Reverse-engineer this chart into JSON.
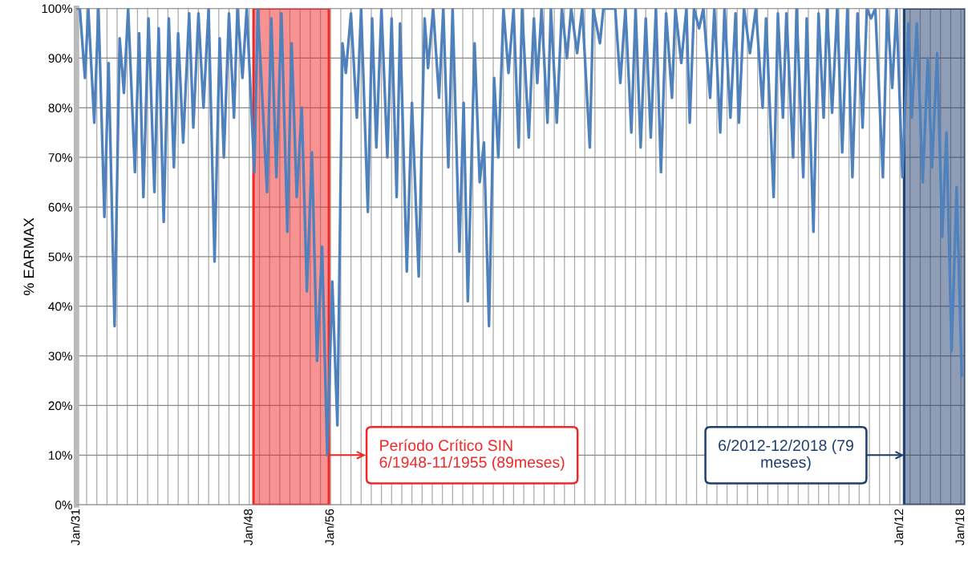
{
  "chart_data": {
    "type": "line",
    "ylabel": "% EARMAX",
    "x": [
      "1931-01",
      "1931-05",
      "1931-11",
      "1932-03",
      "1932-10",
      "1933-03",
      "1933-10",
      "1934-03",
      "1934-10",
      "1935-04",
      "1935-09",
      "1936-02",
      "1936-10",
      "1937-03",
      "1937-08",
      "1938-02",
      "1938-09",
      "1939-02",
      "1939-08",
      "1940-02",
      "1940-08",
      "1941-01",
      "1941-07",
      "1942-02",
      "1942-07",
      "1943-01",
      "1943-07",
      "1944-01",
      "1944-08",
      "1945-02",
      "1945-07",
      "1946-01",
      "1946-07",
      "1946-11",
      "1947-05",
      "1947-10",
      "1948-07",
      "1948-11",
      "1949-10",
      "1950-03",
      "1950-09",
      "1951-03",
      "1951-10",
      "1952-03",
      "1952-09",
      "1953-03",
      "1953-09",
      "1954-03",
      "1954-09",
      "1955-03",
      "1955-09",
      "1956-03",
      "1956-09",
      "1957-03",
      "1957-07",
      "1958-01",
      "1958-08",
      "1959-01",
      "1959-09",
      "1960-02",
      "1960-07",
      "1961-01",
      "1961-08",
      "1962-01",
      "1962-07",
      "1962-11",
      "1963-07",
      "1964-01",
      "1964-09",
      "1965-04",
      "1965-08",
      "1966-02",
      "1966-09",
      "1967-02",
      "1967-08",
      "1968-01",
      "1968-09",
      "1969-02",
      "1969-07",
      "1970-03",
      "1970-09",
      "1971-02",
      "1971-08",
      "1972-02",
      "1972-07",
      "1973-01",
      "1973-07",
      "1974-01",
      "1974-07",
      "1974-11",
      "1975-07",
      "1976-01",
      "1976-05",
      "1976-10",
      "1977-05",
      "1977-09",
      "1978-04",
      "1978-10",
      "1979-04",
      "1979-09",
      "1980-04",
      "1980-10",
      "1981-07",
      "1981-11",
      "1982-07",
      "1982-11",
      "1984-01",
      "1984-07",
      "1985-01",
      "1985-08",
      "1986-01",
      "1986-07",
      "1987-01",
      "1987-07",
      "1988-01",
      "1988-07",
      "1989-01",
      "1989-08",
      "1989-12",
      "1990-07",
      "1991-01",
      "1991-05",
      "1991-10",
      "1992-04",
      "1992-09",
      "1993-05",
      "1993-10",
      "1994-05",
      "1994-10",
      "1995-05",
      "1995-11",
      "1996-03",
      "1996-09",
      "1997-04",
      "1997-11",
      "1998-07",
      "1998-11",
      "1999-08",
      "2000-01",
      "2000-07",
      "2000-11",
      "2001-07",
      "2001-11",
      "2002-07",
      "2002-11",
      "2003-07",
      "2004-01",
      "2004-07",
      "2004-11",
      "2005-05",
      "2005-11",
      "2006-05",
      "2006-11",
      "2007-05",
      "2007-11",
      "2008-05",
      "2008-10",
      "2009-03",
      "2009-08",
      "2010-05",
      "2010-10",
      "2011-04",
      "2011-09",
      "2012-04",
      "2012-11",
      "2013-03",
      "2013-09",
      "2014-04",
      "2014-10",
      "2015-03",
      "2015-09",
      "2016-03",
      "2016-08",
      "2017-02",
      "2017-08",
      "2018-02"
    ],
    "series": [
      {
        "color": "#4f81bd",
        "values": [
          100,
          100,
          86,
          100,
          77,
          100,
          58,
          89,
          36,
          94,
          83,
          100,
          67,
          95,
          62,
          98,
          63,
          96,
          57,
          98,
          68,
          95,
          73,
          99,
          76,
          99,
          80,
          100,
          49,
          94,
          70,
          99,
          78,
          100,
          86,
          100,
          67,
          100,
          63,
          98,
          66,
          99,
          55,
          93,
          62,
          80,
          43,
          71,
          29,
          52,
          10,
          45,
          16,
          93,
          87,
          99,
          78,
          100,
          59,
          98,
          72,
          100,
          70,
          98,
          62,
          97,
          47,
          81,
          46,
          98,
          88,
          100,
          82,
          100,
          68,
          100,
          51,
          81,
          41,
          93,
          65,
          73,
          36,
          86,
          70,
          100,
          87,
          100,
          72,
          100,
          74,
          98,
          85,
          100,
          77,
          100,
          77,
          100,
          90,
          100,
          91,
          100,
          72,
          100,
          93,
          100,
          100,
          85,
          100,
          75,
          100,
          72,
          98,
          74,
          100,
          67,
          99,
          82,
          100,
          89,
          100,
          77,
          100,
          96,
          100,
          82,
          100,
          75,
          100,
          78,
          99,
          77,
          100,
          91,
          100,
          80,
          98,
          62,
          99,
          78,
          99,
          70,
          100,
          66,
          98,
          55,
          99,
          78,
          100,
          79,
          100,
          71,
          100,
          66,
          99,
          76,
          100,
          98,
          100,
          66,
          100,
          84,
          100,
          66,
          97,
          78,
          97,
          65,
          90,
          68,
          91,
          54,
          75,
          31,
          64,
          26
        ]
      }
    ],
    "xlim": [
      "1931-01",
      "2018-06"
    ],
    "xticks": [
      {
        "value": "1931-01",
        "label": "Jan/31"
      },
      {
        "value": "1932-01",
        "label": null
      },
      {
        "value": "1933-01",
        "label": null
      },
      {
        "value": "1934-01",
        "label": null
      },
      {
        "value": "1935-01",
        "label": null
      },
      {
        "value": "1936-01",
        "label": null
      },
      {
        "value": "1937-01",
        "label": null
      },
      {
        "value": "1938-01",
        "label": null
      },
      {
        "value": "1939-01",
        "label": null
      },
      {
        "value": "1940-01",
        "label": null
      },
      {
        "value": "1941-01",
        "label": null
      },
      {
        "value": "1942-01",
        "label": null
      },
      {
        "value": "1943-01",
        "label": null
      },
      {
        "value": "1944-01",
        "label": null
      },
      {
        "value": "1945-01",
        "label": null
      },
      {
        "value": "1946-01",
        "label": null
      },
      {
        "value": "1947-01",
        "label": null
      },
      {
        "value": "1948-01",
        "label": "Jan/48"
      },
      {
        "value": "1949-01",
        "label": null
      },
      {
        "value": "1950-01",
        "label": null
      },
      {
        "value": "1951-01",
        "label": null
      },
      {
        "value": "1952-01",
        "label": null
      },
      {
        "value": "1953-01",
        "label": null
      },
      {
        "value": "1954-01",
        "label": null
      },
      {
        "value": "1955-01",
        "label": null
      },
      {
        "value": "1956-01",
        "label": "Jan/56"
      },
      {
        "value": "1957-01",
        "label": null
      },
      {
        "value": "1958-01",
        "label": null
      },
      {
        "value": "1959-01",
        "label": null
      },
      {
        "value": "1960-01",
        "label": null
      },
      {
        "value": "1961-01",
        "label": null
      },
      {
        "value": "1962-01",
        "label": null
      },
      {
        "value": "1963-01",
        "label": null
      },
      {
        "value": "1964-01",
        "label": null
      },
      {
        "value": "1965-01",
        "label": null
      },
      {
        "value": "1966-01",
        "label": null
      },
      {
        "value": "1967-01",
        "label": null
      },
      {
        "value": "1968-01",
        "label": null
      },
      {
        "value": "1969-01",
        "label": null
      },
      {
        "value": "1970-01",
        "label": null
      },
      {
        "value": "1971-01",
        "label": null
      },
      {
        "value": "1972-01",
        "label": null
      },
      {
        "value": "1973-01",
        "label": null
      },
      {
        "value": "1974-01",
        "label": null
      },
      {
        "value": "1975-01",
        "label": null
      },
      {
        "value": "1976-01",
        "label": null
      },
      {
        "value": "1977-01",
        "label": null
      },
      {
        "value": "1978-01",
        "label": null
      },
      {
        "value": "1979-01",
        "label": null
      },
      {
        "value": "1980-01",
        "label": null
      },
      {
        "value": "1981-01",
        "label": null
      },
      {
        "value": "1982-01",
        "label": null
      },
      {
        "value": "1983-01",
        "label": null
      },
      {
        "value": "1984-01",
        "label": null
      },
      {
        "value": "1985-01",
        "label": null
      },
      {
        "value": "1986-01",
        "label": null
      },
      {
        "value": "1987-01",
        "label": null
      },
      {
        "value": "1988-01",
        "label": null
      },
      {
        "value": "1989-01",
        "label": null
      },
      {
        "value": "1990-01",
        "label": null
      },
      {
        "value": "1991-01",
        "label": null
      },
      {
        "value": "1992-01",
        "label": null
      },
      {
        "value": "1993-01",
        "label": null
      },
      {
        "value": "1994-01",
        "label": null
      },
      {
        "value": "1995-01",
        "label": null
      },
      {
        "value": "1996-01",
        "label": null
      },
      {
        "value": "1997-01",
        "label": null
      },
      {
        "value": "1998-01",
        "label": null
      },
      {
        "value": "1999-01",
        "label": null
      },
      {
        "value": "2000-01",
        "label": null
      },
      {
        "value": "2001-01",
        "label": null
      },
      {
        "value": "2002-01",
        "label": null
      },
      {
        "value": "2003-01",
        "label": null
      },
      {
        "value": "2004-01",
        "label": null
      },
      {
        "value": "2005-01",
        "label": null
      },
      {
        "value": "2006-01",
        "label": null
      },
      {
        "value": "2007-01",
        "label": null
      },
      {
        "value": "2008-01",
        "label": null
      },
      {
        "value": "2009-01",
        "label": null
      },
      {
        "value": "2010-01",
        "label": null
      },
      {
        "value": "2011-01",
        "label": null
      },
      {
        "value": "2012-01",
        "label": "Jan/12"
      },
      {
        "value": "2013-01",
        "label": null
      },
      {
        "value": "2014-01",
        "label": null
      },
      {
        "value": "2015-01",
        "label": null
      },
      {
        "value": "2016-01",
        "label": null
      },
      {
        "value": "2017-01",
        "label": null
      },
      {
        "value": "2018-01",
        "label": "Jan/18"
      }
    ],
    "ylim": [
      0,
      100
    ],
    "yticks": [
      {
        "value": 0,
        "label": "0%"
      },
      {
        "value": 10,
        "label": "10%"
      },
      {
        "value": 20,
        "label": "20%"
      },
      {
        "value": 30,
        "label": "30%"
      },
      {
        "value": 40,
        "label": "40%"
      },
      {
        "value": 50,
        "label": "50%"
      },
      {
        "value": 60,
        "label": "60%"
      },
      {
        "value": 70,
        "label": "70%"
      },
      {
        "value": 80,
        "label": "80%"
      },
      {
        "value": 90,
        "label": "90%"
      },
      {
        "value": 100,
        "label": "100%"
      }
    ],
    "grid": true,
    "line_style": "solid",
    "bands": [
      {
        "axis": "x",
        "from": "1948-06",
        "to": "1955-11",
        "color": "#f02828"
      },
      {
        "axis": "x",
        "from": "2012-06",
        "to": "2018-06",
        "color": "#1f3e6e"
      }
    ],
    "annotations": [
      {
        "text": "Período Crítico SIN\n6/1948-11/1955 (89meses)",
        "x": "1955-11",
        "y": 10
      },
      {
        "text": "6/2012-12/2018 (79\nmeses)",
        "x": "2012-06",
        "y": 10
      }
    ]
  }
}
